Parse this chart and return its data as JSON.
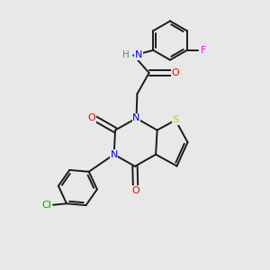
{
  "background_color": "#e8e8e8",
  "bond_color": "#1a1a1a",
  "atom_colors": {
    "N": "#0000ff",
    "O": "#ff0000",
    "S": "#cccc00",
    "Cl": "#00aa00",
    "F": "#ff00ff",
    "H": "#708090",
    "C": "#1a1a1a"
  },
  "figsize": [
    3.0,
    3.0
  ],
  "dpi": 100
}
